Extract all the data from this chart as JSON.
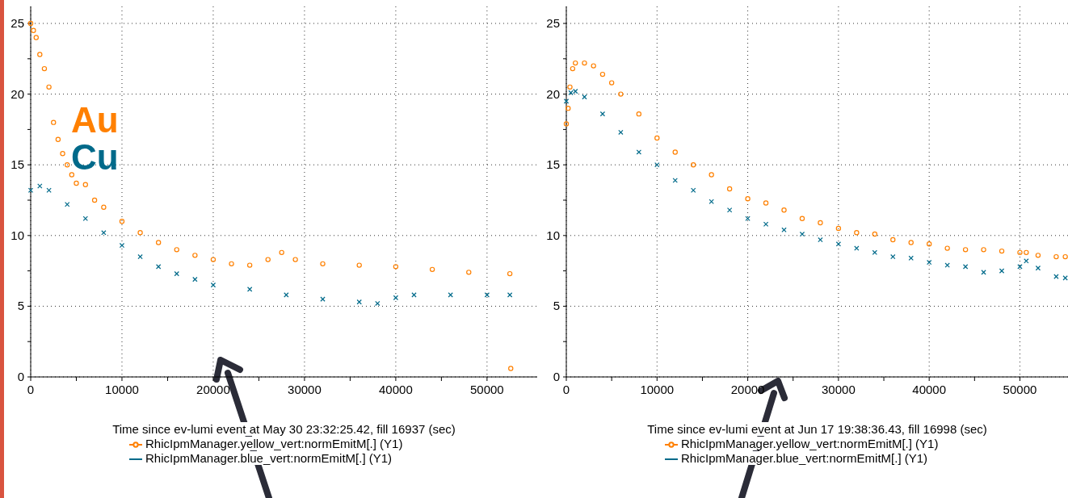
{
  "chart_data": [
    {
      "type": "scatter",
      "xlabel": "Time since ev-lumi event at May 30 23:32:25.42, fill 16937 (sec)",
      "xlim": [
        0,
        55500
      ],
      "ylim": [
        0,
        26.2
      ],
      "xticks": [
        0,
        {
          "value": 5000,
          "label": null
        },
        10000,
        {
          "value": 15000,
          "label": null
        },
        20000,
        {
          "value": 25000,
          "label": null
        },
        30000,
        {
          "value": 35000,
          "label": null
        },
        40000,
        {
          "value": 45000,
          "label": null
        },
        50000
      ],
      "yticks": [
        0,
        {
          "value": 2.5,
          "label": null
        },
        5,
        {
          "value": 7.5,
          "label": null
        },
        10,
        {
          "value": 12.5,
          "label": null
        },
        15,
        {
          "value": 17.5,
          "label": null
        },
        20,
        {
          "value": 22.5,
          "label": null
        },
        25
      ],
      "grid": true,
      "legend": "bottom",
      "annotations": [
        "Au",
        "Cu"
      ],
      "series": [
        {
          "name": "RhicIpmManager.yellow_vert:normEmitM[.] (Y1)",
          "color": "#ff8000",
          "marker": "circle",
          "x": [
            0,
            300,
            600,
            1000,
            1500,
            2000,
            2500,
            3000,
            3500,
            4000,
            4500,
            5000,
            6000,
            7000,
            8000,
            10000,
            12000,
            14000,
            16000,
            18000,
            20000,
            22000,
            24000,
            26000,
            27500,
            29000,
            32000,
            36000,
            40000,
            44000,
            48000,
            52500,
            52600
          ],
          "values": [
            25,
            24.5,
            24,
            22.8,
            21.8,
            20.5,
            18,
            16.8,
            15.8,
            15,
            14.3,
            13.7,
            13.6,
            12.5,
            12,
            11,
            10.2,
            9.5,
            9,
            8.6,
            8.3,
            8,
            7.9,
            8.3,
            8.8,
            8.3,
            8,
            7.9,
            7.8,
            7.6,
            7.4,
            7.3,
            0.6
          ]
        },
        {
          "name": "RhicIpmManager.blue_vert:normEmitM[.] (Y1)",
          "color": "#006a8a",
          "marker": "cross",
          "x": [
            0,
            1000,
            2000,
            4000,
            6000,
            8000,
            10000,
            12000,
            14000,
            16000,
            18000,
            20000,
            24000,
            28000,
            32000,
            36000,
            38000,
            40000,
            42000,
            46000,
            50000,
            52500
          ],
          "values": [
            13.2,
            13.5,
            13.2,
            12.2,
            11.2,
            10.2,
            9.3,
            8.5,
            7.8,
            7.3,
            6.9,
            6.5,
            6.2,
            5.8,
            5.5,
            5.3,
            5.2,
            5.6,
            5.8,
            5.8,
            5.8,
            5.8
          ]
        }
      ]
    },
    {
      "type": "scatter",
      "xlabel": "Time since ev-lumi event at Jun 17 19:38:36.43, fill 16998 (sec)",
      "xlim": [
        0,
        55300
      ],
      "ylim": [
        0,
        26.2
      ],
      "xticks": [
        0,
        {
          "value": 5000,
          "label": null
        },
        10000,
        {
          "value": 15000,
          "label": null
        },
        20000,
        {
          "value": 25000,
          "label": null
        },
        30000,
        {
          "value": 35000,
          "label": null
        },
        40000,
        {
          "value": 45000,
          "label": null
        },
        50000
      ],
      "yticks": [
        0,
        {
          "value": 2.5,
          "label": null
        },
        5,
        {
          "value": 7.5,
          "label": null
        },
        10,
        {
          "value": 12.5,
          "label": null
        },
        15,
        {
          "value": 17.5,
          "label": null
        },
        20,
        {
          "value": 22.5,
          "label": null
        },
        25
      ],
      "grid": true,
      "legend": "bottom",
      "series": [
        {
          "name": "RhicIpmManager.yellow_vert:normEmitM[.] (Y1)",
          "color": "#ff8000",
          "marker": "circle",
          "x": [
            0,
            200,
            400,
            700,
            1000,
            2000,
            3000,
            4000,
            5000,
            6000,
            8000,
            10000,
            12000,
            14000,
            16000,
            18000,
            20000,
            22000,
            24000,
            26000,
            28000,
            30000,
            32000,
            34000,
            36000,
            38000,
            40000,
            42000,
            44000,
            46000,
            48000,
            50000,
            50700,
            52000,
            54000,
            55000
          ],
          "values": [
            17.9,
            19,
            20.5,
            21.8,
            22.2,
            22.2,
            22,
            21.4,
            20.8,
            20,
            18.6,
            16.9,
            15.9,
            15,
            14.3,
            13.3,
            12.6,
            12.3,
            11.8,
            11.2,
            10.9,
            10.5,
            10.2,
            10.1,
            9.7,
            9.5,
            9.4,
            9.1,
            9,
            9,
            8.9,
            8.8,
            8.8,
            8.6,
            8.5,
            8.5
          ]
        },
        {
          "name": "RhicIpmManager.blue_vert:normEmitM[.] (Y1)",
          "color": "#006a8a",
          "marker": "cross",
          "x": [
            0,
            500,
            1000,
            2000,
            4000,
            6000,
            8000,
            10000,
            12000,
            14000,
            16000,
            18000,
            20000,
            22000,
            24000,
            26000,
            28000,
            30000,
            32000,
            34000,
            36000,
            38000,
            40000,
            42000,
            44000,
            46000,
            48000,
            50000,
            50700,
            52000,
            54000,
            55000
          ],
          "values": [
            19.5,
            20.1,
            20.2,
            19.8,
            18.6,
            17.3,
            15.9,
            15,
            13.9,
            13.2,
            12.4,
            11.8,
            11.2,
            10.8,
            10.4,
            10.1,
            9.7,
            9.4,
            9.1,
            8.8,
            8.5,
            8.4,
            8.1,
            7.9,
            7.8,
            7.4,
            7.5,
            7.8,
            8.2,
            7.7,
            7.1,
            7
          ]
        }
      ]
    }
  ]
}
